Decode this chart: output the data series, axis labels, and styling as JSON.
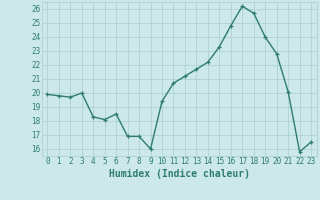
{
  "x": [
    0,
    1,
    2,
    3,
    4,
    5,
    6,
    7,
    8,
    9,
    10,
    11,
    12,
    13,
    14,
    15,
    16,
    17,
    18,
    19,
    20,
    21,
    22,
    23
  ],
  "y": [
    19.9,
    19.8,
    19.7,
    20.0,
    18.3,
    18.1,
    18.5,
    16.9,
    16.9,
    16.0,
    19.4,
    20.7,
    21.2,
    21.7,
    22.2,
    23.3,
    24.8,
    26.2,
    25.7,
    24.0,
    22.8,
    20.1,
    15.8,
    16.5
  ],
  "line_color": "#2d7d6e",
  "marker": "+",
  "markersize": 3.5,
  "linewidth": 1.0,
  "bg_color": "#cce8e8",
  "plot_bg_color": "#cce8e8",
  "grid_color": "#aacece",
  "xlabel": "Humidex (Indice chaleur)",
  "xlabel_fontsize": 7,
  "tick_fontsize": 5.5,
  "xlim": [
    -0.5,
    23.5
  ],
  "ylim": [
    15.5,
    26.5
  ],
  "yticks": [
    16,
    17,
    18,
    19,
    20,
    21,
    22,
    23,
    24,
    25,
    26
  ],
  "xticks": [
    0,
    1,
    2,
    3,
    4,
    5,
    6,
    7,
    8,
    9,
    10,
    11,
    12,
    13,
    14,
    15,
    16,
    17,
    18,
    19,
    20,
    21,
    22,
    23
  ],
  "tick_color": "#2d7d6e",
  "ax_label_color": "#2d7d6e"
}
